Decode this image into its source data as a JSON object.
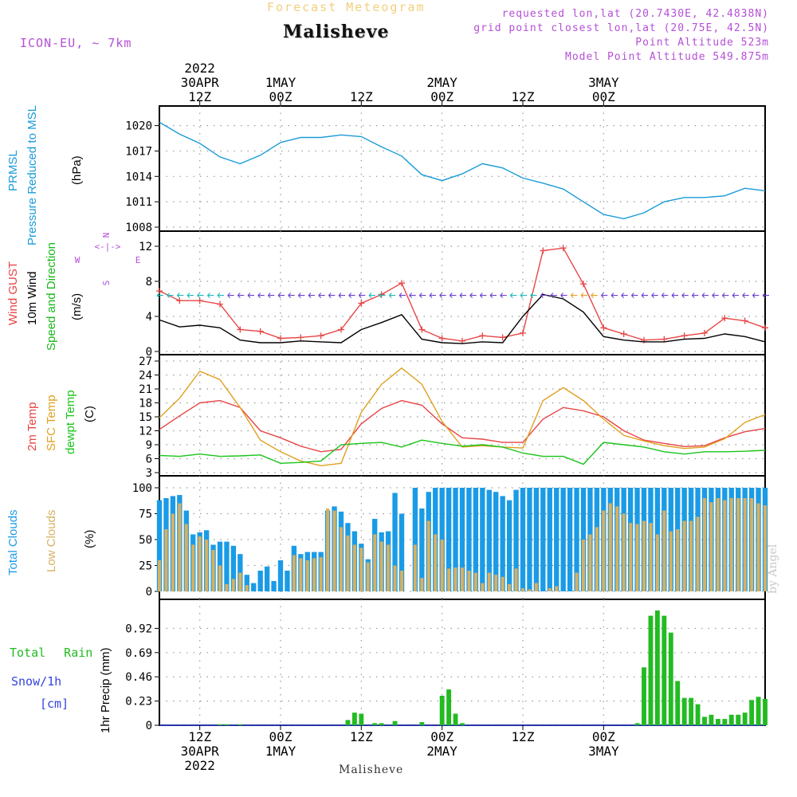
{
  "header": {
    "model": "ICON-EU, ~ 7km",
    "subtitle": "Forecast Meteogram",
    "location": "Malisheve",
    "requested": "requested lon,lat (20.7430E, 42.4838N)",
    "grid_point": "grid point closest lon,lat (20.75E, 42.5N)",
    "point_altitude": "Point Altitude 523m",
    "model_altitude": "Model Point Altitude 549.875m"
  },
  "footer": {
    "location": "Malisheve",
    "credit": "by Angel"
  },
  "colors": {
    "pressure": "#1a9bd9",
    "gust": "#e84545",
    "wind": "#000000",
    "direction": "#19b819",
    "temp2m": "#e84545",
    "sfc": "#e0a020",
    "dewpt": "#19c419",
    "total_clouds": "#1a9be6",
    "low_clouds": "#d8b060",
    "rain": "#22bb22",
    "snow": "#3344dd",
    "label_purple": "#b44fd6",
    "grid": "#999999"
  },
  "time_axis": {
    "top": [
      {
        "line1": "2022",
        "line2": "30APR",
        "line3": "12Z"
      },
      {
        "line1": "",
        "line2": "1MAY",
        "line3": "00Z"
      },
      {
        "line1": "",
        "line2": "",
        "line3": "12Z"
      },
      {
        "line1": "",
        "line2": "2MAY",
        "line3": "00Z"
      },
      {
        "line1": "",
        "line2": "",
        "line3": "12Z"
      },
      {
        "line1": "",
        "line2": "3MAY",
        "line3": "00Z"
      }
    ],
    "bottom": [
      {
        "line1": "12Z",
        "line2": "30APR",
        "line3": "2022"
      },
      {
        "line1": "00Z",
        "line2": "1MAY",
        "line3": ""
      },
      {
        "line1": "12Z",
        "line2": "",
        "line3": ""
      },
      {
        "line1": "00Z",
        "line2": "2MAY",
        "line3": ""
      },
      {
        "line1": "12Z",
        "line2": "",
        "line3": ""
      },
      {
        "line1": "00Z",
        "line2": "3MAY",
        "line3": ""
      }
    ]
  },
  "chart_data": [
    {
      "type": "line",
      "panel": "pressure",
      "ylabel_lines": [
        "PRMSL",
        "Pressure Reduced to MSL",
        "(hPa)"
      ],
      "yticks": [
        1008,
        1011,
        1014,
        1017,
        1020
      ],
      "ylim": [
        1008,
        1021
      ],
      "grid": true,
      "x_hours": [
        0,
        3,
        6,
        9,
        12,
        15,
        18,
        21,
        24,
        27,
        30,
        33,
        36,
        39,
        42,
        45,
        48,
        51,
        54,
        57,
        60,
        63,
        66,
        69,
        72,
        75,
        78,
        81,
        84,
        87,
        90
      ],
      "series": [
        {
          "values": [
            1020.4,
            1019,
            1017.9,
            1016.3,
            1015.5,
            1016.5,
            1018,
            1018.6,
            1018.6,
            1018.9,
            1018.7,
            1017.5,
            1016.4,
            1014.2,
            1013.5,
            1014.3,
            1015.5,
            1015,
            1013.8,
            1013.2,
            1012.5,
            1011,
            1009.5,
            1009,
            1009.7,
            1011,
            1011.5,
            1011.5,
            1011.7,
            1012.6,
            1012.3
          ]
        }
      ]
    },
    {
      "type": "line",
      "panel": "wind",
      "ylabel_lines": [
        "Wind GUST",
        "10m Wind",
        "Speed and Direction",
        "(m/s)"
      ],
      "compass": {
        "w": "W",
        "e": "E",
        "n": "N",
        "s": "S"
      },
      "yticks": [
        0,
        4,
        8,
        12
      ],
      "ylim": [
        0,
        13
      ],
      "grid": true,
      "x_hours": [
        0,
        3,
        6,
        9,
        12,
        15,
        18,
        21,
        24,
        27,
        30,
        33,
        36,
        39,
        42,
        45,
        48,
        51,
        54,
        57,
        60,
        63,
        66,
        69,
        72,
        75,
        78,
        81,
        84,
        87,
        90
      ],
      "series": [
        {
          "name": "Wind GUST",
          "values": [
            6.9,
            5.8,
            5.8,
            5.4,
            2.5,
            2.3,
            1.5,
            1.6,
            1.8,
            2.5,
            5.5,
            6.5,
            7.8,
            2.5,
            1.5,
            1.2,
            1.8,
            1.6,
            2.1,
            11.5,
            11.8,
            7.7,
            2.7,
            2.0,
            1.3,
            1.4,
            1.8,
            2.1,
            3.8,
            3.5,
            2.7
          ]
        },
        {
          "name": "10m Wind",
          "values": [
            3.6,
            2.8,
            3.0,
            2.7,
            1.3,
            1.0,
            1.0,
            1.2,
            1.1,
            1.0,
            2.5,
            3.3,
            4.2,
            1.4,
            1.0,
            0.9,
            1.1,
            1.0,
            4.0,
            6.5,
            6.0,
            4.5,
            1.7,
            1.3,
            1.1,
            1.1,
            1.4,
            1.5,
            2.0,
            1.7,
            1.1
          ]
        }
      ],
      "direction_speed_level": 6.4
    },
    {
      "type": "line",
      "panel": "temperature",
      "ylabel_lines": [
        "2m Temp",
        "SFC Temp",
        "dewpt Temp",
        "(C)"
      ],
      "yticks": [
        3,
        6,
        9,
        12,
        15,
        18,
        21,
        24,
        27
      ],
      "ylim": [
        3,
        27
      ],
      "grid": true,
      "x_hours": [
        0,
        3,
        6,
        9,
        12,
        15,
        18,
        21,
        24,
        27,
        30,
        33,
        36,
        39,
        42,
        45,
        48,
        51,
        54,
        57,
        60,
        63,
        66,
        69,
        72,
        75,
        78,
        81,
        84,
        87,
        90
      ],
      "series": [
        {
          "name": "2m Temp",
          "values": [
            12.3,
            15.2,
            18.0,
            18.5,
            17.0,
            12.0,
            10.5,
            8.7,
            7.5,
            8.0,
            13.5,
            16.8,
            18.5,
            17.5,
            13.5,
            10.5,
            10.2,
            9.5,
            9.5,
            14.5,
            17.0,
            16.3,
            15.0,
            12.0,
            10.0,
            9.3,
            8.6,
            8.8,
            10.5,
            11.8,
            12.5
          ]
        },
        {
          "name": "SFC Temp",
          "values": [
            14.8,
            19.0,
            24.8,
            23.0,
            17.0,
            10.0,
            7.5,
            5.5,
            4.5,
            5.0,
            16.0,
            22.0,
            25.5,
            22.0,
            14.0,
            8.5,
            8.8,
            8.5,
            8.3,
            18.5,
            21.3,
            18.5,
            14.5,
            11.0,
            9.8,
            8.8,
            8.2,
            8.5,
            10.3,
            13.8,
            15.5
          ]
        },
        {
          "name": "dewpt Temp",
          "values": [
            6.7,
            6.5,
            7.0,
            6.5,
            6.6,
            6.8,
            5.0,
            5.2,
            5.5,
            9.0,
            9.3,
            9.5,
            8.5,
            10.0,
            9.3,
            8.7,
            9.0,
            8.5,
            7.2,
            6.5,
            6.5,
            4.8,
            9.5,
            9.0,
            8.5,
            7.5,
            7.0,
            7.5,
            7.5,
            7.6,
            7.8
          ]
        }
      ]
    },
    {
      "type": "bar",
      "panel": "clouds",
      "ylabel_lines": [
        "Total Clouds",
        "Low Clouds",
        "(%)"
      ],
      "yticks": [
        0,
        25,
        50,
        75,
        100
      ],
      "ylim": [
        0,
        100
      ],
      "grid": true,
      "x_hours": [
        0,
        1,
        2,
        3,
        4,
        5,
        6,
        7,
        8,
        9,
        10,
        11,
        12,
        13,
        14,
        15,
        16,
        17,
        18,
        19,
        20,
        21,
        22,
        23,
        24,
        25,
        26,
        27,
        28,
        29,
        30,
        31,
        32,
        33,
        34,
        35,
        36,
        37,
        38,
        39,
        40,
        41,
        42,
        43,
        44,
        45,
        46,
        47,
        48,
        49,
        50,
        51,
        52,
        53,
        54,
        55,
        56,
        57,
        58,
        59,
        60,
        61,
        62,
        63,
        64,
        65,
        66,
        67,
        68,
        69,
        70,
        71,
        72,
        73,
        74,
        75,
        76,
        77,
        78,
        79,
        80,
        81,
        82,
        83,
        84,
        85,
        86,
        87,
        88,
        89,
        90
      ],
      "series": [
        {
          "name": "Total Clouds",
          "values": [
            88,
            90,
            92,
            93,
            78,
            55,
            57,
            59,
            45,
            48,
            48,
            44,
            36,
            16,
            8,
            20,
            24,
            10,
            30,
            20,
            44,
            36,
            38,
            38,
            38,
            78,
            82,
            77,
            66,
            58,
            46,
            31,
            70,
            57,
            58,
            95,
            75,
            0,
            100,
            80,
            96,
            100,
            100,
            100,
            100,
            100,
            100,
            100,
            100,
            98,
            96,
            92,
            88,
            98,
            100,
            100,
            100,
            100,
            100,
            100,
            100,
            100,
            100,
            100,
            100,
            100,
            100,
            100,
            100,
            100,
            100,
            100,
            100,
            100,
            100,
            100,
            100,
            100,
            100,
            100,
            100,
            100,
            100,
            100,
            100,
            100,
            100,
            100,
            100,
            100,
            100
          ]
        },
        {
          "name": "Low Clouds",
          "values": [
            30,
            60,
            75,
            85,
            65,
            45,
            53,
            50,
            40,
            25,
            7,
            12,
            18,
            6,
            0,
            0,
            0,
            0,
            0,
            0,
            35,
            32,
            30,
            32,
            33,
            80,
            78,
            62,
            54,
            45,
            42,
            28,
            55,
            48,
            45,
            25,
            20,
            0,
            45,
            13,
            68,
            55,
            50,
            22,
            23,
            23,
            20,
            18,
            8,
            18,
            16,
            14,
            7,
            22,
            3,
            2,
            8,
            0,
            3,
            5,
            0,
            0,
            18,
            50,
            55,
            62,
            78,
            85,
            82,
            75,
            66,
            65,
            68,
            66,
            55,
            78,
            58,
            60,
            68,
            68,
            72,
            90,
            86,
            90,
            88,
            90,
            90,
            90,
            90,
            85,
            83
          ]
        }
      ]
    },
    {
      "type": "bar",
      "panel": "precip",
      "ylabel_lines": [
        "Total Rain",
        "Snow/1h",
        "[cm]",
        "1hr Precip (mm)"
      ],
      "yticks": [
        0,
        0.23,
        0.46,
        0.69,
        0.92
      ],
      "ylim": [
        0,
        1.12
      ],
      "grid": true,
      "x_hours": [
        0,
        1,
        2,
        3,
        4,
        5,
        6,
        7,
        8,
        9,
        10,
        11,
        12,
        13,
        14,
        15,
        16,
        17,
        18,
        19,
        20,
        21,
        22,
        23,
        24,
        25,
        26,
        27,
        28,
        29,
        30,
        31,
        32,
        33,
        34,
        35,
        36,
        37,
        38,
        39,
        40,
        41,
        42,
        43,
        44,
        45,
        46,
        47,
        48,
        49,
        50,
        51,
        52,
        53,
        54,
        55,
        56,
        57,
        58,
        59,
        60,
        61,
        62,
        63,
        64,
        65,
        66,
        67,
        68,
        69,
        70,
        71,
        72,
        73,
        74,
        75,
        76,
        77,
        78,
        79,
        80,
        81,
        82,
        83,
        84,
        85,
        86,
        87,
        88,
        89,
        90
      ],
      "series": [
        {
          "name": "Total Rain",
          "values": [
            0,
            0,
            0,
            0,
            0,
            0,
            0,
            0,
            0,
            0.01,
            0.01,
            0,
            0.01,
            0,
            0,
            0,
            0,
            0,
            0,
            0,
            0,
            0,
            0,
            0,
            0,
            0,
            0,
            0,
            0.05,
            0.12,
            0.11,
            0,
            0.02,
            0.02,
            0,
            0.04,
            0,
            0,
            0,
            0.03,
            0,
            0,
            0.28,
            0.34,
            0.11,
            0.02,
            0,
            0,
            0,
            0,
            0,
            0,
            0,
            0,
            0,
            0,
            0,
            0,
            0,
            0,
            0,
            0,
            0,
            0,
            0,
            0,
            0,
            0,
            0,
            0,
            0,
            0.02,
            0.55,
            1.04,
            1.09,
            1.04,
            0.88,
            0.42,
            0.26,
            0.26,
            0.2,
            0.08,
            0.1,
            0.06,
            0.06,
            0.1,
            0.1,
            0.12,
            0.24,
            0.27,
            0.25
          ]
        },
        {
          "name": "Snow",
          "values": []
        }
      ]
    }
  ]
}
